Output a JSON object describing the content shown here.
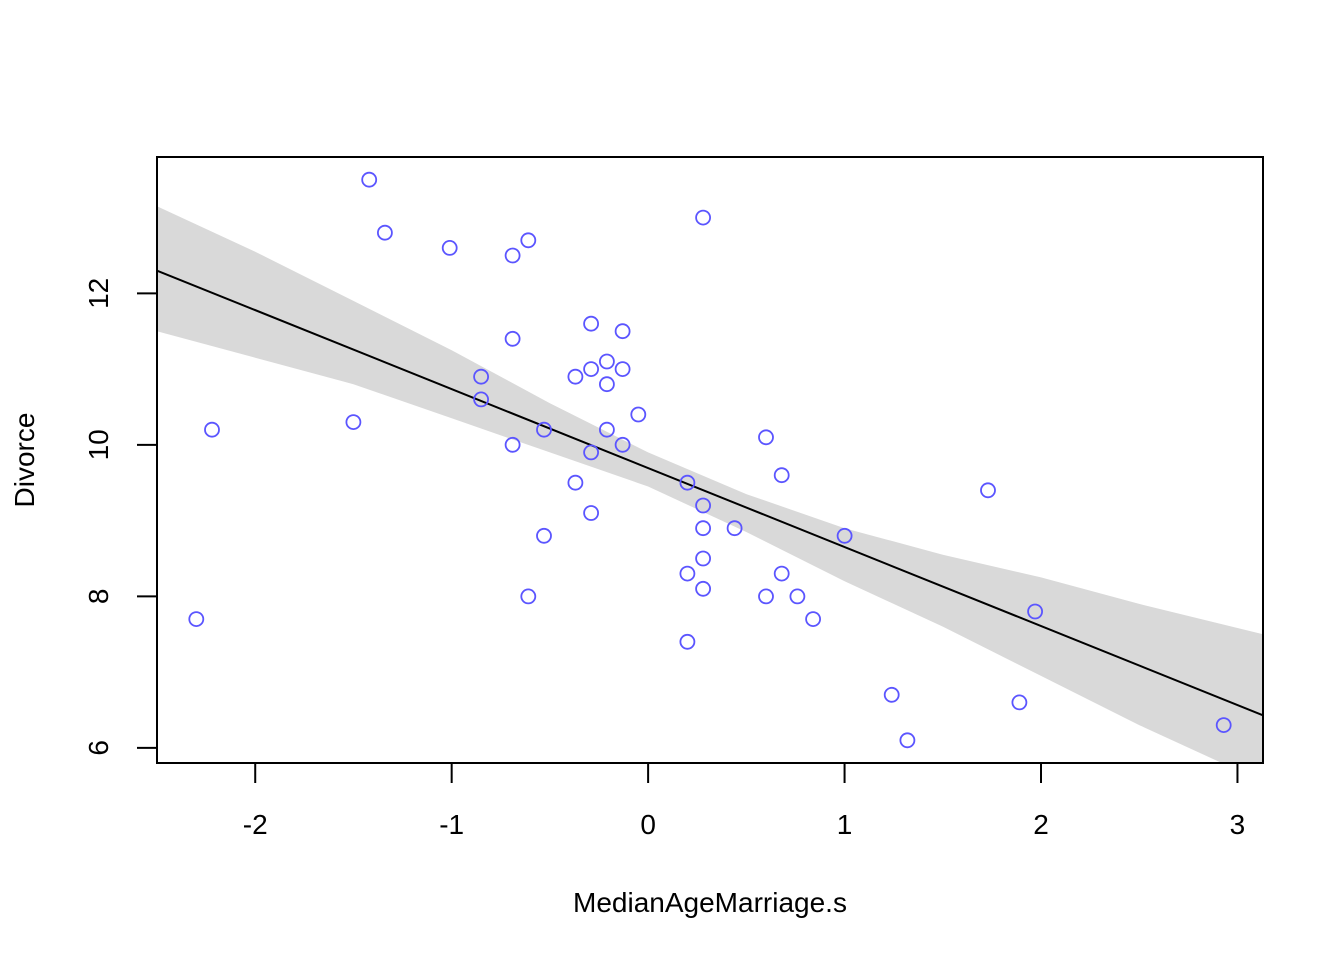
{
  "chart_data": {
    "type": "scatter",
    "title": "",
    "xlabel": "MedianAgeMarriage.s",
    "ylabel": "Divorce",
    "xlim": [
      -2.5,
      3.13
    ],
    "ylim": [
      5.8,
      13.8
    ],
    "xticks": [
      -2,
      -1,
      0,
      1,
      2,
      3
    ],
    "yticks": [
      6,
      8,
      10,
      12
    ],
    "grid": false,
    "colors": {
      "points": "#5b55ff",
      "line": "#000000",
      "band": "#d9d9d9"
    },
    "points": [
      {
        "x": -1.42,
        "y": 13.5
      },
      {
        "x": -1.34,
        "y": 12.8
      },
      {
        "x": -1.01,
        "y": 12.6
      },
      {
        "x": -0.61,
        "y": 12.7
      },
      {
        "x": -0.69,
        "y": 12.5
      },
      {
        "x": 0.28,
        "y": 13.0
      },
      {
        "x": -0.29,
        "y": 11.6
      },
      {
        "x": -0.13,
        "y": 11.5
      },
      {
        "x": -0.69,
        "y": 11.4
      },
      {
        "x": -0.21,
        "y": 11.1
      },
      {
        "x": -0.29,
        "y": 11.0
      },
      {
        "x": -0.13,
        "y": 11.0
      },
      {
        "x": -0.37,
        "y": 10.9
      },
      {
        "x": -0.85,
        "y": 10.9
      },
      {
        "x": -0.21,
        "y": 10.8
      },
      {
        "x": -0.85,
        "y": 10.6
      },
      {
        "x": -0.05,
        "y": 10.4
      },
      {
        "x": -1.5,
        "y": 10.3
      },
      {
        "x": -2.22,
        "y": 10.2
      },
      {
        "x": -0.53,
        "y": 10.2
      },
      {
        "x": -0.21,
        "y": 10.2
      },
      {
        "x": 0.6,
        "y": 10.1
      },
      {
        "x": -0.69,
        "y": 10.0
      },
      {
        "x": -0.13,
        "y": 10.0
      },
      {
        "x": -0.29,
        "y": 9.9
      },
      {
        "x": 0.68,
        "y": 9.6
      },
      {
        "x": -0.37,
        "y": 9.5
      },
      {
        "x": 0.2,
        "y": 9.5
      },
      {
        "x": 1.73,
        "y": 9.4
      },
      {
        "x": 0.28,
        "y": 9.2
      },
      {
        "x": -0.29,
        "y": 9.1
      },
      {
        "x": 0.28,
        "y": 8.9
      },
      {
        "x": 0.44,
        "y": 8.9
      },
      {
        "x": -0.53,
        "y": 8.8
      },
      {
        "x": 1.0,
        "y": 8.8
      },
      {
        "x": 0.28,
        "y": 8.5
      },
      {
        "x": 0.2,
        "y": 8.3
      },
      {
        "x": 0.68,
        "y": 8.3
      },
      {
        "x": 0.28,
        "y": 8.1
      },
      {
        "x": -0.61,
        "y": 8.0
      },
      {
        "x": 0.6,
        "y": 8.0
      },
      {
        "x": 0.76,
        "y": 8.0
      },
      {
        "x": 1.97,
        "y": 7.8
      },
      {
        "x": -2.3,
        "y": 7.7
      },
      {
        "x": 0.84,
        "y": 7.7
      },
      {
        "x": 0.2,
        "y": 7.4
      },
      {
        "x": 1.24,
        "y": 6.7
      },
      {
        "x": 1.89,
        "y": 6.6
      },
      {
        "x": 2.93,
        "y": 6.3
      },
      {
        "x": 1.32,
        "y": 6.1
      }
    ],
    "regression_line": {
      "x": [
        -2.5,
        3.13
      ],
      "y": [
        12.3,
        6.43
      ]
    },
    "interval_band": {
      "x": [
        -2.5,
        -2.0,
        -1.5,
        -1.0,
        -0.5,
        0.0,
        0.5,
        1.0,
        1.5,
        2.0,
        2.5,
        3.13
      ],
      "lower": [
        11.5,
        11.15,
        10.8,
        10.35,
        9.9,
        9.45,
        8.85,
        8.2,
        7.6,
        6.95,
        6.3,
        5.55
      ],
      "upper": [
        13.15,
        12.55,
        11.9,
        11.25,
        10.55,
        9.9,
        9.35,
        8.9,
        8.55,
        8.25,
        7.9,
        7.5
      ]
    }
  }
}
